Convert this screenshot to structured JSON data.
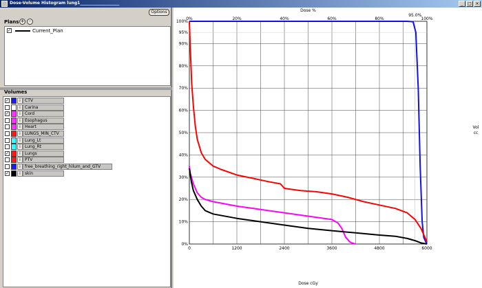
{
  "window": {
    "title": "Dose-Volume Histogram lung1___________________"
  },
  "left_panel": {
    "options_label": "Options",
    "plans_title": "Plans",
    "add_label": "+",
    "remove_label": "-",
    "plans": [
      {
        "name": "Current_Plan",
        "checked": true,
        "line_color": "#000000"
      }
    ],
    "volumes_title": "Volumes",
    "info_label": "i",
    "volumes": [
      {
        "name": "CTV",
        "checked": true,
        "color": "#1a1aff"
      },
      {
        "name": "Carina",
        "checked": false,
        "color": "#ffffff"
      },
      {
        "name": "Cord",
        "checked": true,
        "color": "#ff33ff"
      },
      {
        "name": "Esophagus",
        "checked": false,
        "color": "#ff33ff"
      },
      {
        "name": "Heart",
        "checked": false,
        "color": "#ff33ff"
      },
      {
        "name": "LUNGS_MIN_CTV",
        "checked": false,
        "color": "#ff1a1a"
      },
      {
        "name": "Lung_Lt",
        "checked": false,
        "color": "#33ffff"
      },
      {
        "name": "Lung_Rt",
        "checked": false,
        "color": "#33ffff"
      },
      {
        "name": "Lungs",
        "checked": true,
        "color": "#ff1a1a"
      },
      {
        "name": "PTV",
        "checked": false,
        "color": "#ff1a1a"
      },
      {
        "name": "free_breathing_right_hilum_and_GTV",
        "checked": false,
        "color": "#1a1aff"
      },
      {
        "name": "skin",
        "checked": true,
        "color": "#000000"
      }
    ]
  },
  "chart_data": {
    "type": "line",
    "title": "",
    "xlabel": "Dose cGy",
    "x2label": "Dose %",
    "ylabel": "Vol cc",
    "xlim": [
      0,
      6000
    ],
    "ylim": [
      0,
      100
    ],
    "x_ticks": [
      "0",
      "1200",
      "2400",
      "3600",
      "4800",
      "6000"
    ],
    "x2_ticks": [
      "0%",
      "20%",
      "40%",
      "60%",
      "80%",
      "100%"
    ],
    "y_ticks": [
      "0%",
      "10%",
      "20%",
      "30%",
      "40%",
      "50%",
      "60%",
      "70%",
      "80%",
      "90%",
      "100%"
    ],
    "marker_labels": {
      "x_marker": "95.0%",
      "y_marker": "95%"
    },
    "grid": true,
    "series": [
      {
        "color": "#1010ee",
        "points": [
          [
            0,
            100
          ],
          [
            5500,
            100
          ],
          [
            5650,
            99.8
          ],
          [
            5720,
            95
          ],
          [
            5780,
            70
          ],
          [
            5830,
            35
          ],
          [
            5880,
            10
          ],
          [
            5920,
            3
          ],
          [
            5970,
            1
          ],
          [
            6000,
            0
          ]
        ]
      },
      {
        "color": "#ff0000",
        "points": [
          [
            0,
            100
          ],
          [
            20,
            90
          ],
          [
            60,
            72
          ],
          [
            100,
            62
          ],
          [
            150,
            53
          ],
          [
            200,
            47
          ],
          [
            300,
            41
          ],
          [
            400,
            38
          ],
          [
            600,
            35
          ],
          [
            800,
            33.5
          ],
          [
            1200,
            31
          ],
          [
            1600,
            29.5
          ],
          [
            2000,
            28
          ],
          [
            2300,
            27
          ],
          [
            2400,
            25
          ],
          [
            2800,
            24
          ],
          [
            3200,
            23.5
          ],
          [
            3600,
            22.5
          ],
          [
            4000,
            21
          ],
          [
            4200,
            20
          ],
          [
            4400,
            19
          ],
          [
            4800,
            17.5
          ],
          [
            5200,
            16
          ],
          [
            5500,
            14
          ],
          [
            5700,
            11
          ],
          [
            5850,
            7
          ],
          [
            5950,
            3
          ],
          [
            6000,
            1
          ]
        ]
      },
      {
        "color": "#ff00ff",
        "points": [
          [
            0,
            35
          ],
          [
            20,
            32
          ],
          [
            100,
            27
          ],
          [
            200,
            23
          ],
          [
            300,
            21
          ],
          [
            400,
            20
          ],
          [
            600,
            19
          ],
          [
            1200,
            17
          ],
          [
            1800,
            15.5
          ],
          [
            2400,
            14
          ],
          [
            3000,
            12.5
          ],
          [
            3600,
            11
          ],
          [
            3750,
            9.5
          ],
          [
            3850,
            7
          ],
          [
            3950,
            3
          ],
          [
            4050,
            1
          ],
          [
            4100,
            0.5
          ],
          [
            4200,
            0
          ]
        ]
      },
      {
        "color": "#000000",
        "points": [
          [
            0,
            34
          ],
          [
            50,
            28
          ],
          [
            100,
            24
          ],
          [
            200,
            20
          ],
          [
            300,
            17
          ],
          [
            400,
            15
          ],
          [
            600,
            13.5
          ],
          [
            1200,
            11.5
          ],
          [
            1800,
            10
          ],
          [
            2400,
            8.5
          ],
          [
            3000,
            7
          ],
          [
            3600,
            6
          ],
          [
            4200,
            5
          ],
          [
            4800,
            4
          ],
          [
            5200,
            3.5
          ],
          [
            5500,
            2.5
          ],
          [
            5700,
            1.5
          ],
          [
            5850,
            0.5
          ],
          [
            6000,
            0
          ]
        ]
      }
    ]
  }
}
